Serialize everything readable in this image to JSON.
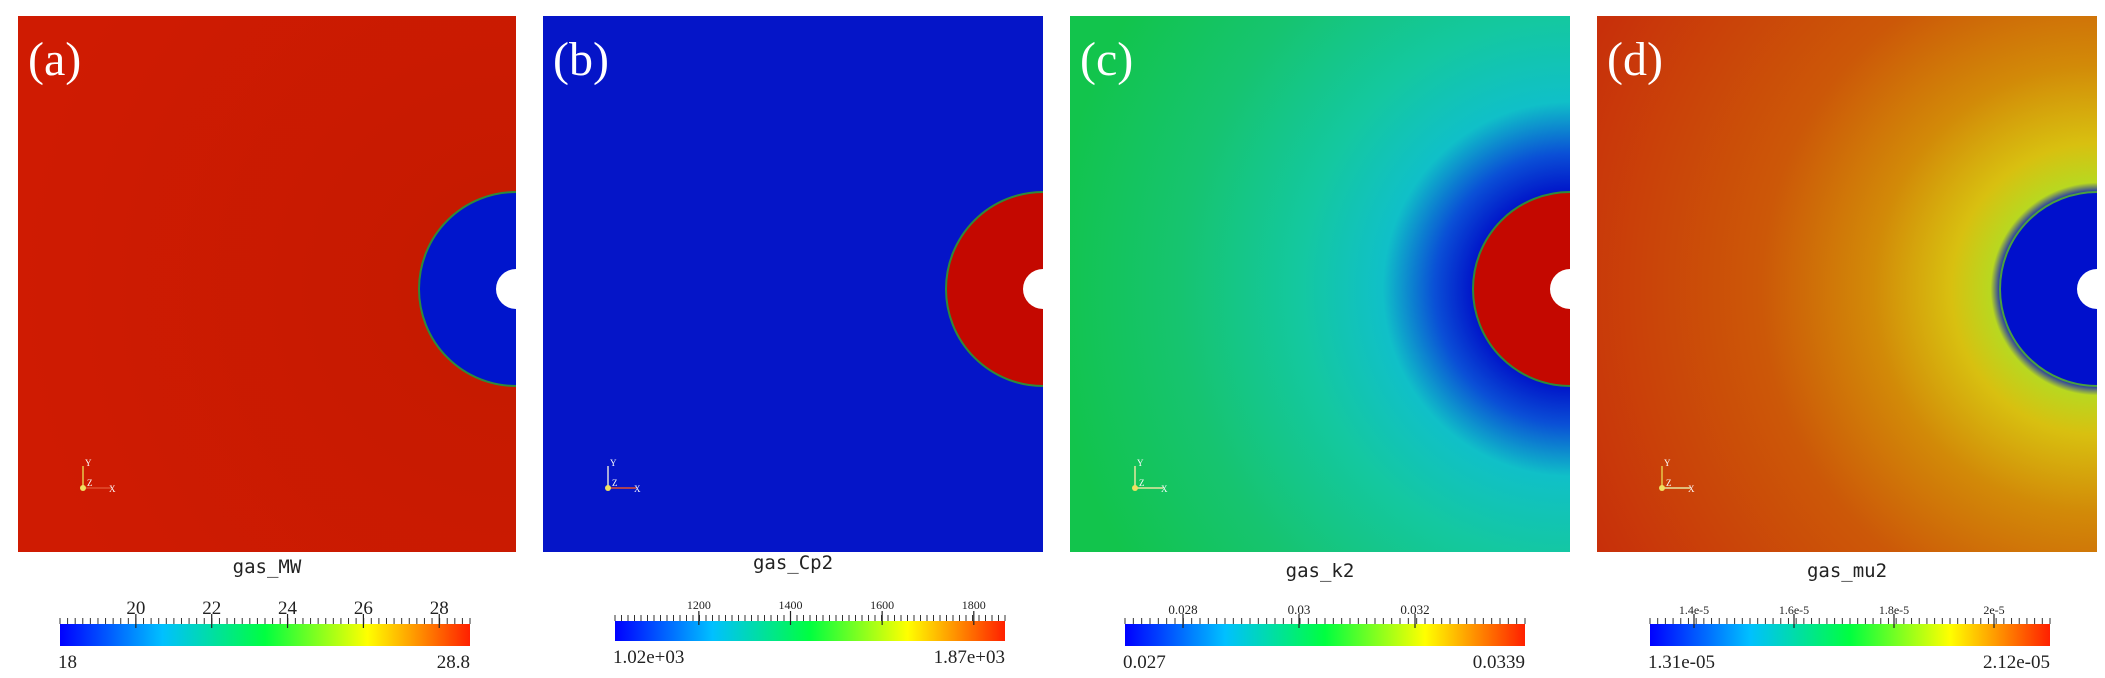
{
  "panels": [
    {
      "letter": "(a)",
      "field_name": "gas_MW",
      "bg": "#cc1a00",
      "disk": "#0015cc",
      "halo": "none",
      "colorbar": {
        "min_label": "18",
        "max_label": "28.8",
        "ticks": [
          "20",
          "22",
          "24",
          "26",
          "28"
        ]
      }
    },
    {
      "letter": "(b)",
      "field_name": "gas_Cp2",
      "bg": "#0515c8",
      "disk": "#c40800",
      "halo": "none",
      "colorbar": {
        "min_label": "1.02e+03",
        "max_label": "1.87e+03",
        "ticks": [
          "1200",
          "1400",
          "1600",
          "1800"
        ]
      }
    },
    {
      "letter": "(c)",
      "field_name": "gas_k2",
      "bg": "#17c45a",
      "disk": "#c40800",
      "halo": "cool",
      "colorbar": {
        "min_label": "0.027",
        "max_label": "0.0339",
        "ticks": [
          "0.028",
          "0.03",
          "0.032"
        ]
      }
    },
    {
      "letter": "(d)",
      "field_name": "gas_mu2",
      "bg": "#c8350a",
      "disk": "#0010cc",
      "halo": "warm",
      "colorbar": {
        "min_label": "1.31e-05",
        "max_label": "2.12e-05",
        "ticks": [
          "1.4e-5",
          "1.6e-5",
          "1.8e-5",
          "2e-5"
        ]
      }
    }
  ],
  "axis_labels": {
    "x": "X",
    "y": "Y",
    "z": "Z"
  }
}
